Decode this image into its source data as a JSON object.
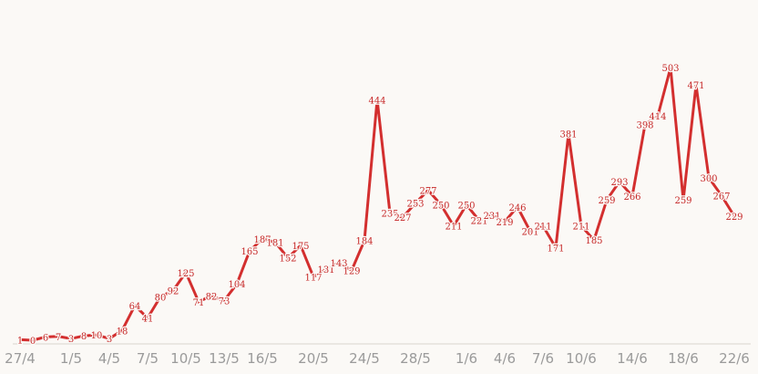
{
  "chart_data": {
    "type": "line",
    "x": [
      "27/4",
      "28/4",
      "29/4",
      "30/4",
      "1/5",
      "2/5",
      "3/5",
      "4/5",
      "5/5",
      "6/5",
      "7/5",
      "8/5",
      "9/5",
      "10/5",
      "11/5",
      "12/5",
      "13/5",
      "14/5",
      "15/5",
      "16/5",
      "17/5",
      "18/5",
      "19/5",
      "20/5",
      "21/5",
      "22/5",
      "23/5",
      "24/5",
      "25/5",
      "26/5",
      "27/5",
      "28/5",
      "29/5",
      "30/5",
      "31/5",
      "1/6",
      "2/6",
      "3/6",
      "4/6",
      "5/6",
      "6/6",
      "7/6",
      "8/6",
      "9/6",
      "10/6",
      "11/6",
      "12/6",
      "13/6",
      "14/6",
      "15/6",
      "16/6",
      "17/6",
      "18/6",
      "19/6",
      "20/6",
      "21/6",
      "22/6"
    ],
    "values": [
      1,
      0,
      6,
      7,
      3,
      8,
      10,
      3,
      18,
      64,
      41,
      80,
      92,
      125,
      71,
      82,
      73,
      104,
      165,
      187,
      181,
      152,
      175,
      117,
      131,
      143,
      129,
      184,
      444,
      235,
      227,
      253,
      277,
      250,
      211,
      250,
      221,
      231,
      219,
      246,
      201,
      211,
      171,
      381,
      211,
      185,
      259,
      293,
      266,
      398,
      414,
      503,
      259,
      471,
      300,
      267,
      229
    ],
    "ticks": [
      "27/4",
      "1/5",
      "4/5",
      "7/5",
      "10/5",
      "13/5",
      "16/5",
      "20/5",
      "24/5",
      "28/5",
      "1/6",
      "4/6",
      "7/6",
      "10/6",
      "14/6",
      "18/6",
      "22/6"
    ],
    "ylim": [
      0,
      520
    ],
    "grid": false,
    "color": "#d32f2f",
    "label_color": "#c62828",
    "tick_color": "#9a9a9a"
  }
}
